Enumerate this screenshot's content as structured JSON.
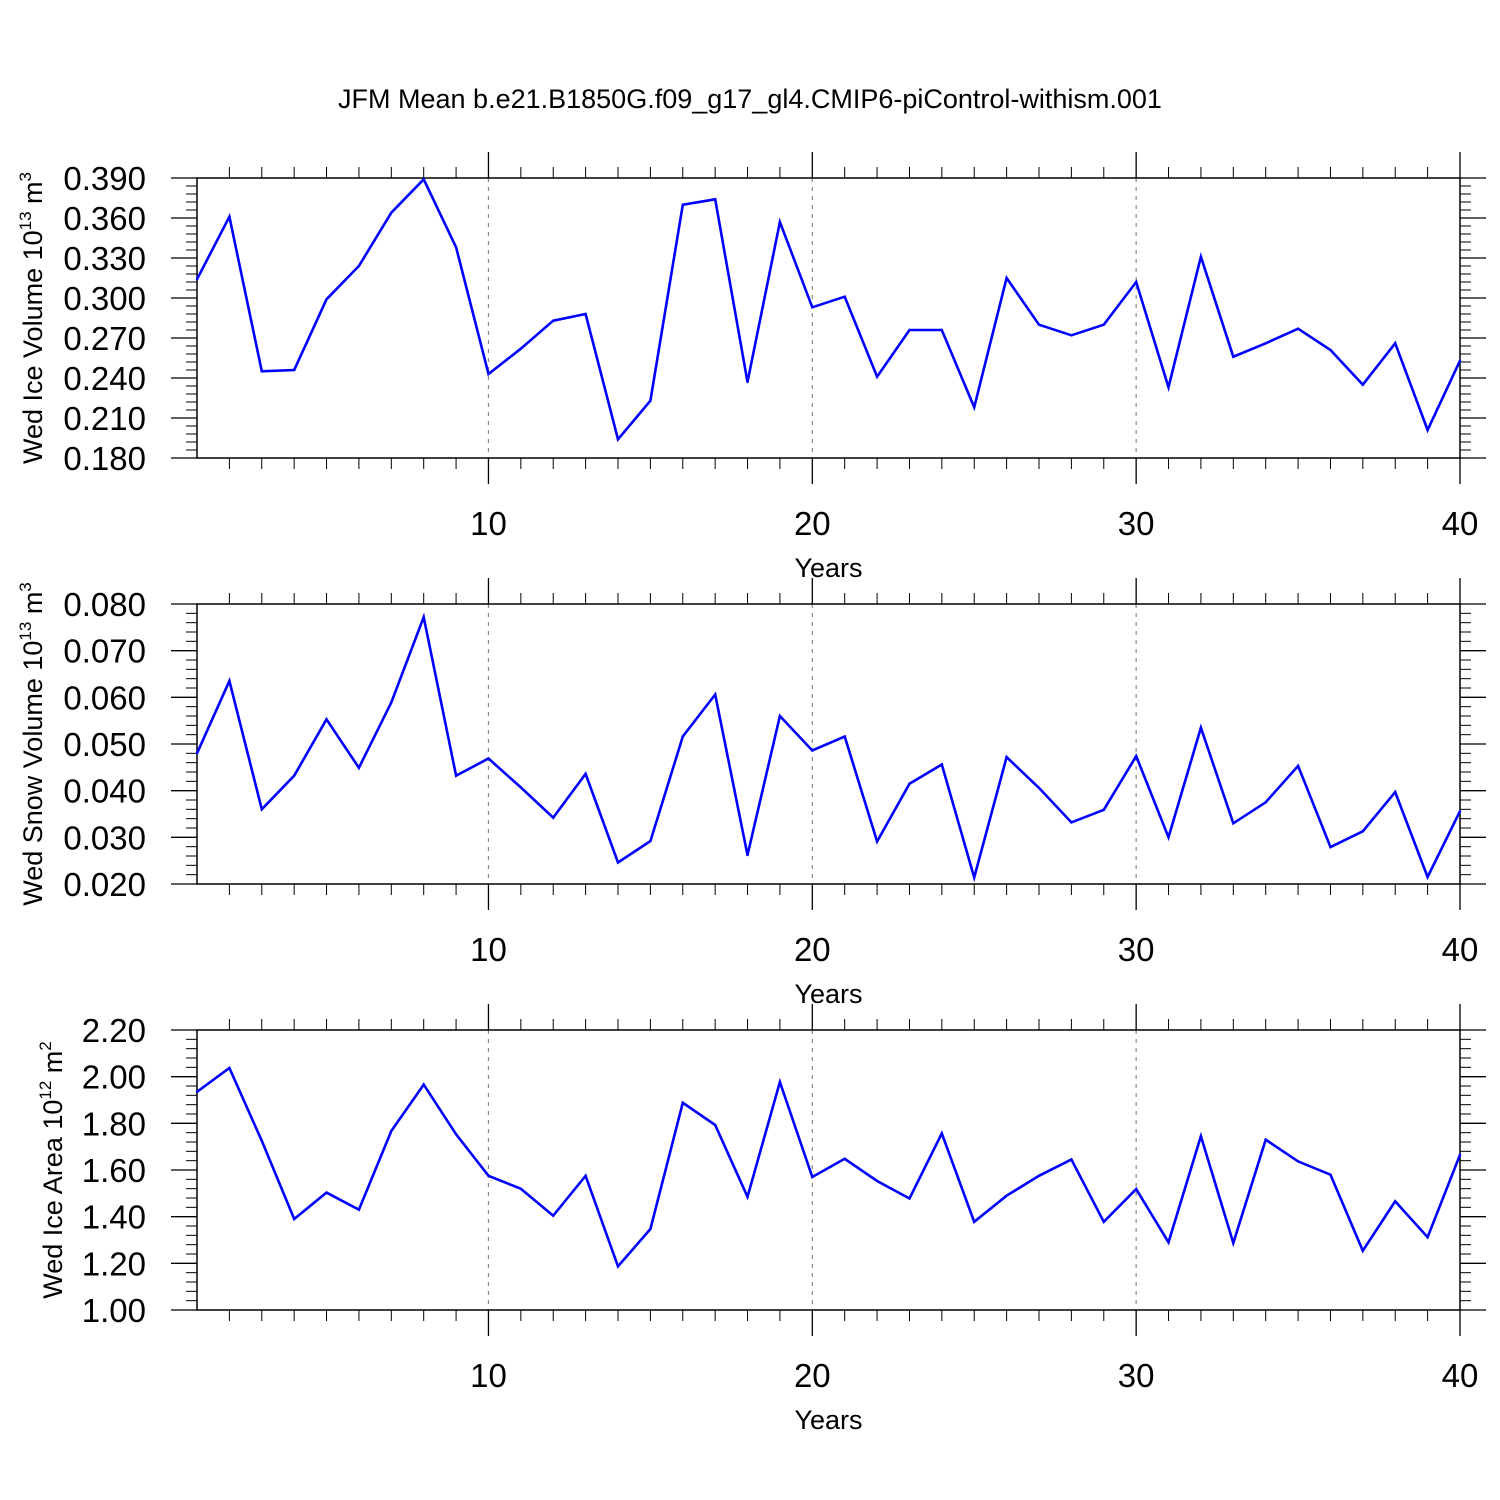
{
  "page_title": "JFM Mean b.e21.B1850G.f09_g17_gl4.CMIP6-piControl-withism.001",
  "chart_data": [
    {
      "type": "line",
      "xlabel": "Years",
      "ylabel_main": "Wed Ice Volume 10",
      "ylabel_exp": "13",
      "ylabel_unit": " m",
      "ylabel_unit_exp": "3",
      "xlim": [
        1,
        40
      ],
      "ylim": [
        0.18,
        0.39
      ],
      "yticks": [
        "0.180",
        "0.210",
        "0.240",
        "0.270",
        "0.300",
        "0.330",
        "0.360",
        "0.390"
      ],
      "xticks": [
        "10",
        "20",
        "30",
        "40"
      ],
      "line_color": "#0000ff",
      "x": [
        1,
        2,
        3,
        4,
        5,
        6,
        7,
        8,
        9,
        10,
        11,
        12,
        13,
        14,
        15,
        16,
        17,
        18,
        19,
        20,
        21,
        22,
        23,
        24,
        25,
        26,
        27,
        28,
        29,
        30,
        31,
        32,
        33,
        34,
        35,
        36,
        37,
        38,
        39,
        40
      ],
      "values": [
        0.314,
        0.361,
        0.245,
        0.246,
        0.299,
        0.324,
        0.364,
        0.389,
        0.338,
        0.243,
        0.262,
        0.283,
        0.288,
        0.194,
        0.223,
        0.37,
        0.374,
        0.237,
        0.357,
        0.293,
        0.301,
        0.241,
        0.276,
        0.276,
        0.218,
        0.315,
        0.28,
        0.272,
        0.28,
        0.312,
        0.233,
        0.331,
        0.256,
        0.266,
        0.277,
        0.261,
        0.235,
        0.266,
        0.201,
        0.253
      ]
    },
    {
      "type": "line",
      "xlabel": "Years",
      "ylabel_main": "Wed Snow Volume 10",
      "ylabel_exp": "13",
      "ylabel_unit": " m",
      "ylabel_unit_exp": "3",
      "xlim": [
        1,
        40
      ],
      "ylim": [
        0.02,
        0.08
      ],
      "yticks": [
        "0.020",
        "0.030",
        "0.040",
        "0.050",
        "0.060",
        "0.070",
        "0.080"
      ],
      "xticks": [
        "10",
        "20",
        "30",
        "40"
      ],
      "line_color": "#0000ff",
      "x": [
        1,
        2,
        3,
        4,
        5,
        6,
        7,
        8,
        9,
        10,
        11,
        12,
        13,
        14,
        15,
        16,
        17,
        18,
        19,
        20,
        21,
        22,
        23,
        24,
        25,
        26,
        27,
        28,
        29,
        30,
        31,
        32,
        33,
        34,
        35,
        36,
        37,
        38,
        39,
        40
      ],
      "values": [
        0.048,
        0.0635,
        0.036,
        0.0432,
        0.0553,
        0.0449,
        0.0589,
        0.0772,
        0.0432,
        0.0469,
        0.0407,
        0.0342,
        0.0436,
        0.0246,
        0.0292,
        0.0516,
        0.0606,
        0.0262,
        0.056,
        0.0486,
        0.0516,
        0.0291,
        0.0415,
        0.0456,
        0.0214,
        0.0472,
        0.0406,
        0.0332,
        0.0359,
        0.0474,
        0.03,
        0.0535,
        0.033,
        0.0375,
        0.0453,
        0.0279,
        0.0313,
        0.0397,
        0.0215,
        0.0356
      ]
    },
    {
      "type": "line",
      "xlabel": "Years",
      "ylabel_main": "Wed Ice Area 10",
      "ylabel_exp": "12",
      "ylabel_unit": " m",
      "ylabel_unit_exp": "2",
      "xlim": [
        1,
        40
      ],
      "ylim": [
        1.0,
        2.2
      ],
      "yticks": [
        "1.00",
        "1.20",
        "1.40",
        "1.60",
        "1.80",
        "2.00",
        "2.20"
      ],
      "xticks": [
        "10",
        "20",
        "30",
        "40"
      ],
      "line_color": "#0000ff",
      "x": [
        1,
        2,
        3,
        4,
        5,
        6,
        7,
        8,
        9,
        10,
        11,
        12,
        13,
        14,
        15,
        16,
        17,
        18,
        19,
        20,
        21,
        22,
        23,
        24,
        25,
        26,
        27,
        28,
        29,
        30,
        31,
        32,
        33,
        34,
        35,
        36,
        37,
        38,
        39,
        40
      ],
      "values": [
        1.935,
        2.037,
        1.725,
        1.39,
        1.503,
        1.43,
        1.767,
        1.966,
        1.753,
        1.575,
        1.52,
        1.404,
        1.575,
        1.187,
        1.347,
        1.888,
        1.793,
        1.485,
        1.977,
        1.57,
        1.648,
        1.553,
        1.478,
        1.757,
        1.378,
        1.49,
        1.575,
        1.645,
        1.378,
        1.518,
        1.29,
        1.745,
        1.287,
        1.73,
        1.637,
        1.58,
        1.254,
        1.466,
        1.312,
        1.665
      ]
    }
  ]
}
